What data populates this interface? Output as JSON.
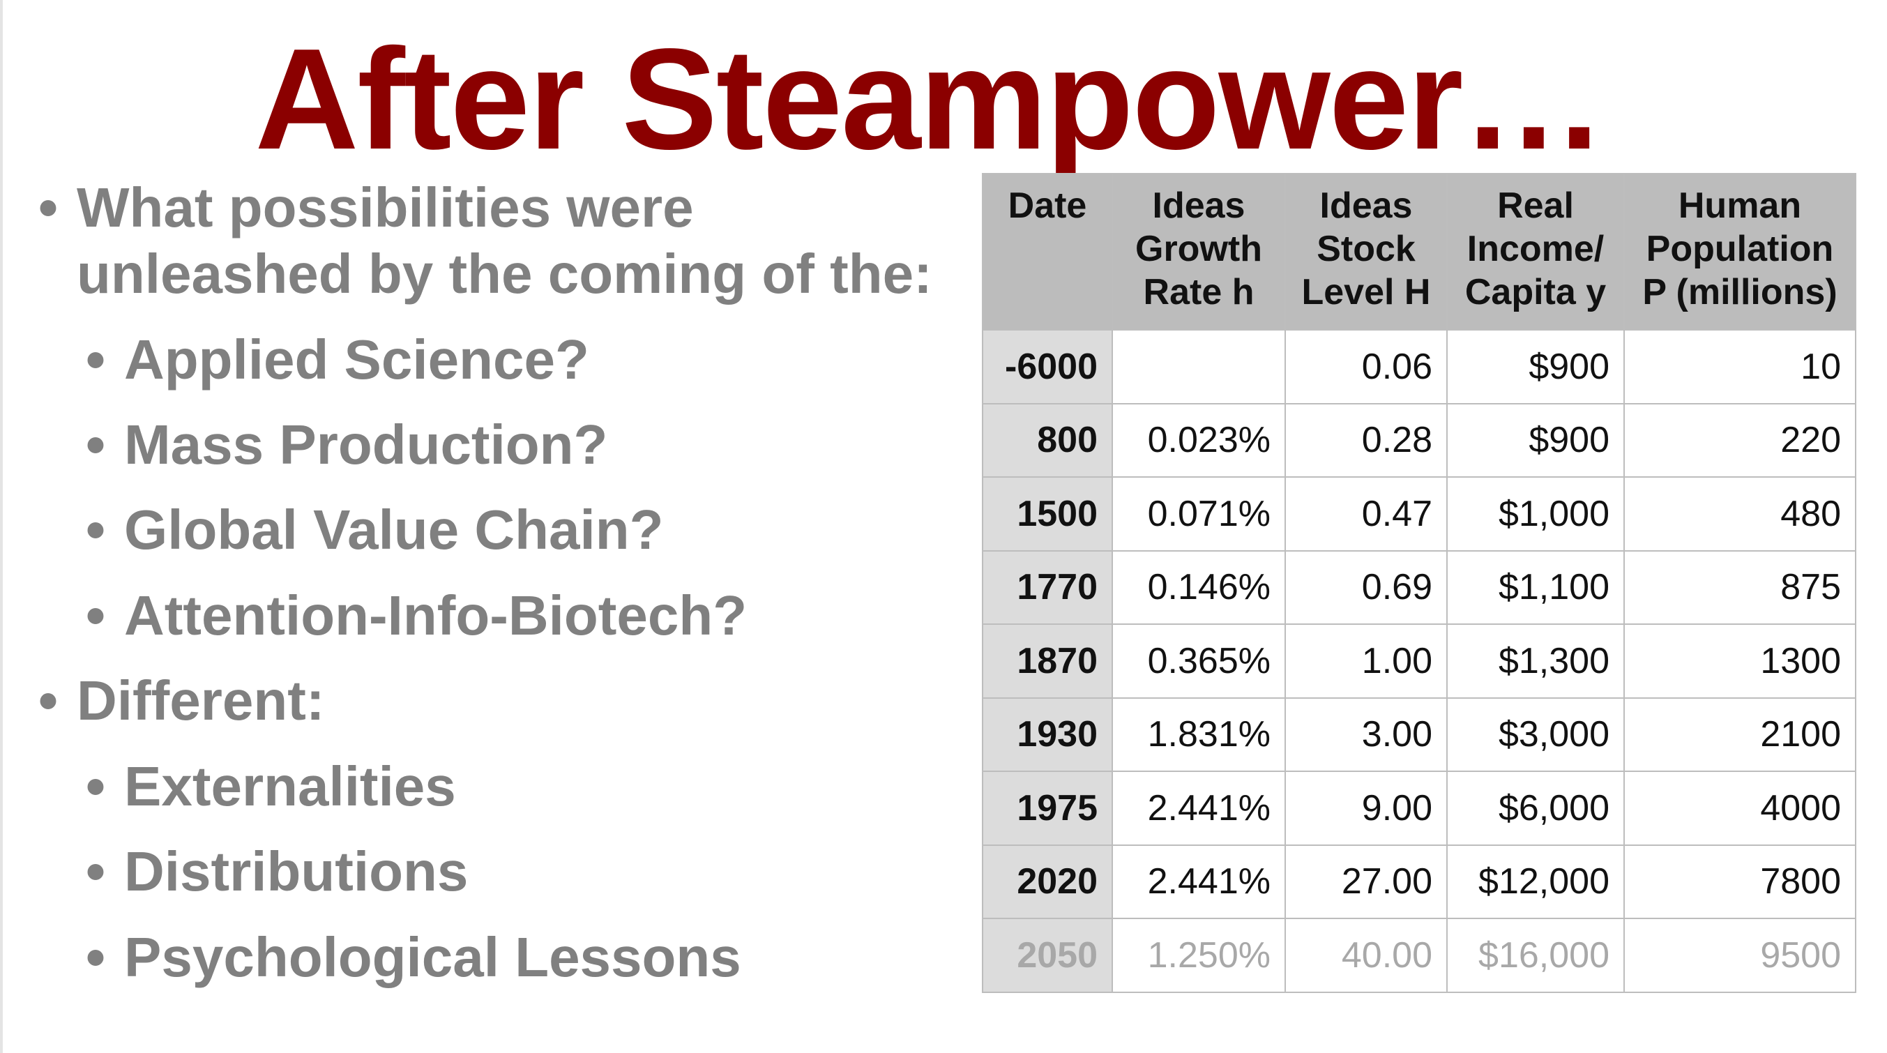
{
  "title": "After Steampower…",
  "bullets": [
    {
      "level": 1,
      "text": "What possibilities were"
    },
    {
      "level": 0,
      "text": "unleashed by the coming of the:"
    },
    {
      "level": 2,
      "text": "Applied Science?"
    },
    {
      "level": 2,
      "text": "Mass Production?"
    },
    {
      "level": 2,
      "text": "Global Value Chain?"
    },
    {
      "level": 2,
      "text": "Attention-Info-Biotech?"
    },
    {
      "level": 1,
      "text": "Different:"
    },
    {
      "level": 2,
      "text": "Externalities"
    },
    {
      "level": 2,
      "text": "Distributions"
    },
    {
      "level": 2,
      "text": "Psychological Lessons"
    }
  ],
  "bullet_glyph": "•",
  "table": {
    "headers": [
      [
        "Date"
      ],
      [
        "Ideas",
        "Growth",
        "Rate h"
      ],
      [
        "Ideas",
        "Stock",
        "Level H"
      ],
      [
        "Real",
        "Income/",
        "Capita y"
      ],
      [
        "Human",
        "Population",
        "P (millions)"
      ]
    ],
    "rows": [
      [
        "-6000",
        "",
        "0.06",
        "$900",
        "10"
      ],
      [
        "800",
        "0.023%",
        "0.28",
        "$900",
        "220"
      ],
      [
        "1500",
        "0.071%",
        "0.47",
        "$1,000",
        "480"
      ],
      [
        "1770",
        "0.146%",
        "0.69",
        "$1,100",
        "875"
      ],
      [
        "1870",
        "0.365%",
        "1.00",
        "$1,300",
        "1300"
      ],
      [
        "1930",
        "1.831%",
        "3.00",
        "$3,000",
        "2100"
      ],
      [
        "1975",
        "2.441%",
        "9.00",
        "$6,000",
        "4000"
      ],
      [
        "2020",
        "2.441%",
        "27.00",
        "$12,000",
        "7800"
      ],
      [
        "2050",
        "1.250%",
        "40.00",
        "$16,000",
        "9500"
      ]
    ],
    "future_row_index": 8
  },
  "colors": {
    "title": "#8b0000",
    "bullet_text": "#808080",
    "header_bg": "#bcbcbc",
    "date_col_bg": "#dcdcdc",
    "future_text": "#a8a8a8"
  }
}
